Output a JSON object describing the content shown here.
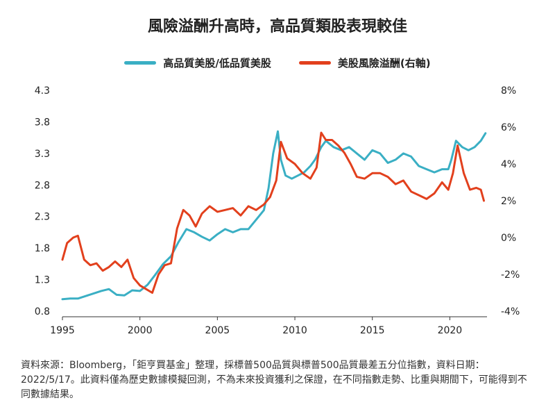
{
  "chart_data": {
    "type": "line",
    "title": "風險溢酬升高時，高品質類股表現較佳",
    "xlim": [
      1995,
      2022.4
    ],
    "x_ticks": [
      "1995",
      "2000",
      "2005",
      "2010",
      "2015",
      "2020"
    ],
    "y_left": {
      "ylim": [
        0.8,
        4.3
      ],
      "ticks": [
        "0.8",
        "1.3",
        "1.8",
        "2.3",
        "2.8",
        "3.3",
        "3.8",
        "4.3"
      ]
    },
    "y_right": {
      "ylim": [
        -4,
        8
      ],
      "ticks": [
        "-4%",
        "-2%",
        "0%",
        "2%",
        "4%",
        "6%",
        "8%"
      ]
    },
    "grid": false,
    "legend_position": "top-center",
    "series": [
      {
        "name": "高品質美股/低品質美股",
        "axis": "left",
        "color": "#3AAFC4",
        "x": [
          1995.0,
          1995.5,
          1996.0,
          1996.5,
          1997.0,
          1997.5,
          1998.0,
          1998.5,
          1999.0,
          1999.5,
          2000.0,
          2000.5,
          2001.0,
          2001.5,
          2002.0,
          2002.5,
          2003.0,
          2003.5,
          2004.0,
          2004.5,
          2005.0,
          2005.5,
          2006.0,
          2006.5,
          2007.0,
          2007.5,
          2008.0,
          2008.3,
          2008.6,
          2008.9,
          2009.1,
          2009.4,
          2009.8,
          2010.2,
          2010.6,
          2011.0,
          2011.3,
          2011.7,
          2012.0,
          2012.5,
          2013.0,
          2013.5,
          2014.0,
          2014.5,
          2015.0,
          2015.5,
          2016.0,
          2016.5,
          2017.0,
          2017.5,
          2018.0,
          2018.5,
          2019.0,
          2019.5,
          2019.9,
          2020.1,
          2020.4,
          2020.8,
          2021.2,
          2021.6,
          2022.0,
          2022.3
        ],
        "values": [
          0.99,
          1.0,
          1.0,
          1.04,
          1.08,
          1.12,
          1.15,
          1.06,
          1.05,
          1.13,
          1.12,
          1.22,
          1.38,
          1.55,
          1.67,
          1.9,
          2.1,
          2.05,
          1.98,
          1.92,
          2.02,
          2.1,
          2.05,
          2.1,
          2.1,
          2.25,
          2.4,
          2.75,
          3.3,
          3.65,
          3.2,
          2.95,
          2.9,
          2.95,
          3.0,
          3.1,
          3.2,
          3.4,
          3.5,
          3.4,
          3.35,
          3.4,
          3.3,
          3.2,
          3.35,
          3.3,
          3.15,
          3.2,
          3.3,
          3.25,
          3.1,
          3.05,
          3.0,
          3.05,
          3.05,
          3.2,
          3.5,
          3.4,
          3.35,
          3.4,
          3.5,
          3.62
        ]
      },
      {
        "name": "美股風險溢酬(右軸)",
        "axis": "right",
        "color": "#E2401D",
        "x": [
          1995.0,
          1995.3,
          1995.7,
          1996.0,
          1996.4,
          1996.8,
          1997.2,
          1997.6,
          1998.0,
          1998.4,
          1998.8,
          1999.2,
          1999.6,
          2000.0,
          2000.4,
          2000.8,
          2001.2,
          2001.6,
          2002.0,
          2002.4,
          2002.8,
          2003.2,
          2003.6,
          2004.0,
          2004.5,
          2005.0,
          2005.5,
          2006.0,
          2006.5,
          2007.0,
          2007.5,
          2008.0,
          2008.4,
          2008.8,
          2009.1,
          2009.5,
          2010.0,
          2010.5,
          2011.0,
          2011.4,
          2011.7,
          2012.0,
          2012.4,
          2012.8,
          2013.2,
          2013.6,
          2014.0,
          2014.5,
          2015.0,
          2015.5,
          2016.0,
          2016.5,
          2017.0,
          2017.5,
          2018.0,
          2018.5,
          2019.0,
          2019.5,
          2019.9,
          2020.2,
          2020.5,
          2020.9,
          2021.3,
          2021.7,
          2022.0,
          2022.2
        ],
        "values": [
          -1.2,
          -0.3,
          0.0,
          0.1,
          -1.2,
          -1.5,
          -1.4,
          -1.8,
          -1.6,
          -1.3,
          -1.6,
          -1.2,
          -2.2,
          -2.6,
          -2.8,
          -3.0,
          -2.0,
          -1.5,
          -1.4,
          0.5,
          1.5,
          1.2,
          0.6,
          1.3,
          1.7,
          1.4,
          1.5,
          1.6,
          1.2,
          1.7,
          1.5,
          1.8,
          2.2,
          3.1,
          5.2,
          4.3,
          4.0,
          3.5,
          3.2,
          3.8,
          5.7,
          5.3,
          5.3,
          5.0,
          4.6,
          4.0,
          3.3,
          3.2,
          3.5,
          3.5,
          3.3,
          2.9,
          3.1,
          2.5,
          2.3,
          2.1,
          2.4,
          3.0,
          2.6,
          3.5,
          5.0,
          3.5,
          2.6,
          2.7,
          2.6,
          2.0
        ]
      }
    ],
    "note": "資料來源：Bloomberg，「鉅亨買基金」整理，採標普500品質與標普500品質最差五分位指數，資料日期：2022/5/17。此資料僅為歷史數據模擬回測，不為未來投資獲利之保證，在不同指數走勢、比重與期間下，可能得到不同數據結果。"
  }
}
